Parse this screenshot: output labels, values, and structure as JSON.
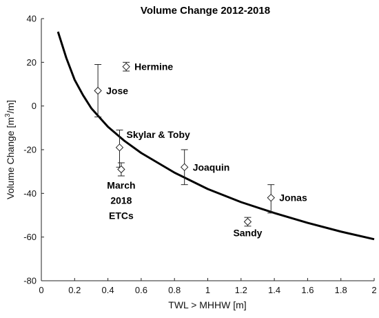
{
  "chart_data": {
    "type": "scatter",
    "title": "Volume Change 2012-2018",
    "xlabel": "TWL > MHHW [m]",
    "ylabel": "Volume Change [m",
    "ylabel_sup": "3",
    "ylabel_tail": "/m]",
    "xlim": [
      0,
      2
    ],
    "ylim": [
      -80,
      40
    ],
    "xticks": [
      "0",
      "0.2",
      "0.4",
      "0.6",
      "0.8",
      "1",
      "1.2",
      "1.4",
      "1.6",
      "1.8",
      "2"
    ],
    "yticks": [
      "40",
      "20",
      "0",
      "-20",
      "-40",
      "-60",
      "-80"
    ],
    "grid": false,
    "points": [
      {
        "name": "Jose",
        "label_lines": [
          "Jose"
        ],
        "x": 0.34,
        "y": 7,
        "err_low": 12,
        "err_high": 12,
        "label_pos": "right"
      },
      {
        "name": "Hermine",
        "label_lines": [
          "Hermine"
        ],
        "x": 0.51,
        "y": 18,
        "err_low": 2,
        "err_high": 2,
        "label_pos": "right"
      },
      {
        "name": "Skylar & Toby",
        "label_lines": [
          "Skylar & Toby"
        ],
        "x": 0.47,
        "y": -19,
        "err_low": 9,
        "err_high": 8,
        "label_pos": "above-right"
      },
      {
        "name": "March 2018 ETCs",
        "label_lines": [
          "March",
          "2018",
          "ETCs"
        ],
        "x": 0.48,
        "y": -29,
        "err_low": 3,
        "err_high": 3,
        "label_pos": "below"
      },
      {
        "name": "Joaquin",
        "label_lines": [
          "Joaquin"
        ],
        "x": 0.86,
        "y": -28,
        "err_low": 8,
        "err_high": 8,
        "label_pos": "right"
      },
      {
        "name": "Jonas",
        "label_lines": [
          "Jonas"
        ],
        "x": 1.38,
        "y": -42,
        "err_low": 7,
        "err_high": 6,
        "label_pos": "right"
      },
      {
        "name": "Sandy",
        "label_lines": [
          "Sandy"
        ],
        "x": 1.24,
        "y": -53,
        "err_low": 2,
        "err_high": 2,
        "label_pos": "below"
      }
    ],
    "fit_curve": {
      "x": [
        0.1,
        0.15,
        0.2,
        0.25,
        0.3,
        0.4,
        0.5,
        0.6,
        0.8,
        1.0,
        1.2,
        1.4,
        1.6,
        1.8,
        2.0
      ],
      "y": [
        34,
        22,
        12,
        5,
        -1,
        -9.5,
        -16,
        -21.5,
        -30.5,
        -38,
        -44,
        -49,
        -53.5,
        -57.5,
        -61
      ]
    }
  }
}
